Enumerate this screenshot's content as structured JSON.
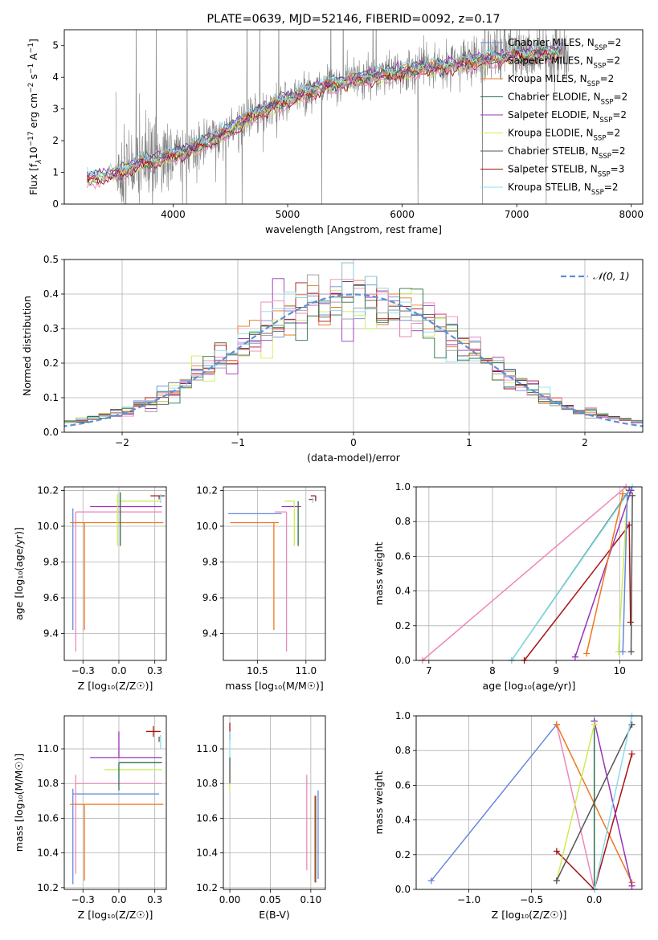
{
  "figure_title": "PLATE=0639, MJD=52146, FIBERID=0092, z=0.17",
  "chart_data": [
    {
      "id": "spectrum",
      "type": "line",
      "title": "PLATE=0639, MJD=52146, FIBERID=0092, z=0.17",
      "xlabel": "wavelength [Angstrom, rest frame]",
      "ylabel_parts": [
        "Flux [f",
        "λ",
        "10",
        "−17",
        " erg cm",
        "−2",
        " s",
        "−1",
        " A",
        "−1",
        "]"
      ],
      "xlim": [
        3050,
        8100
      ],
      "ylim": [
        0,
        5.5
      ],
      "xticks": [
        4000,
        5000,
        6000,
        7000,
        8000
      ],
      "yticks": [
        0,
        1,
        2,
        3,
        4,
        5
      ],
      "grid": false,
      "legend_position": "upper right",
      "data_color": "#808080",
      "data_noise_seed": 7,
      "data_x_range": [
        3500,
        7450
      ],
      "model_x_range": [
        3250,
        7400
      ],
      "continuum": [
        [
          3250,
          0.8
        ],
        [
          3400,
          0.9
        ],
        [
          3550,
          1.0
        ],
        [
          3700,
          1.3
        ],
        [
          3850,
          1.4
        ],
        [
          4000,
          1.55
        ],
        [
          4200,
          1.8
        ],
        [
          4400,
          2.15
        ],
        [
          4600,
          2.6
        ],
        [
          4800,
          3.0
        ],
        [
          5000,
          3.3
        ],
        [
          5200,
          3.55
        ],
        [
          5400,
          3.8
        ],
        [
          5600,
          3.95
        ],
        [
          5800,
          4.05
        ],
        [
          6000,
          4.2
        ],
        [
          6200,
          4.3
        ],
        [
          6400,
          4.35
        ],
        [
          6600,
          4.5
        ],
        [
          6800,
          4.6
        ],
        [
          7000,
          4.7
        ],
        [
          7200,
          4.75
        ],
        [
          7400,
          4.8
        ]
      ],
      "legend": [
        {
          "label": "Chabrier MILES, N",
          "sub": "SSP",
          "suffix": "=2",
          "color": "#6688dd"
        },
        {
          "label": "Salpeter MILES, N",
          "sub": "SSP",
          "suffix": "=2",
          "color": "#999999"
        },
        {
          "label": "Kroupa MILES, N",
          "sub": "SSP",
          "suffix": "=2",
          "color": "#ee7722"
        },
        {
          "label": "Chabrier ELODIE, N",
          "sub": "SSP",
          "suffix": "=2",
          "color": "#2e6e4e"
        },
        {
          "label": "Salpeter ELODIE, N",
          "sub": "SSP",
          "suffix": "=2",
          "color": "#9933bb"
        },
        {
          "label": "Kroupa ELODIE, N",
          "sub": "SSP",
          "suffix": "=2",
          "color": "#ccee55"
        },
        {
          "label": "Chabrier STELIB, N",
          "sub": "SSP",
          "suffix": "=2",
          "color": "#555555"
        },
        {
          "label": "Salpeter STELIB, N",
          "sub": "SSP",
          "suffix": "=3",
          "color": "#aa1111"
        },
        {
          "label": "Kroupa STELIB, N",
          "sub": "SSP",
          "suffix": "=2",
          "color": "#88ddee"
        }
      ],
      "model_colors": [
        "#6688dd",
        "#999999",
        "#ee7722",
        "#2e6e4e",
        "#9933bb",
        "#ccee55",
        "#555555",
        "#aa1111",
        "#88ddee",
        "#ee88bb"
      ]
    },
    {
      "id": "residuals",
      "type": "line",
      "xlabel": "(data-model)/error",
      "ylabel": "Normed distribution",
      "xlim": [
        -2.5,
        2.5
      ],
      "ylim": [
        0,
        0.5
      ],
      "xticks": [
        -2,
        -1,
        0,
        1,
        2
      ],
      "yticks": [
        0.0,
        0.1,
        0.2,
        0.3,
        0.4,
        0.5
      ],
      "grid": true,
      "legend_position": "upper right",
      "gaussian": {
        "label": "𝒩(0, 1)",
        "color": "#5b8fd6",
        "mu": 0,
        "sigma": 1
      },
      "bin_width": 0.1,
      "histogram_colors": [
        "#6688dd",
        "#ee7722",
        "#9933bb",
        "#ccee55",
        "#555555",
        "#aa1111",
        "#88ddee",
        "#ee88bb",
        "#2e6e4e",
        "#999999"
      ]
    },
    {
      "id": "age_vs_Z",
      "type": "scatter",
      "xlabel": "Z [log₁₀(Z/Z☉)]",
      "ylabel": "age  [log₁₀(age/yr)]",
      "xlim": [
        -0.38,
        0.33
      ],
      "ylim": [
        9.25,
        10.22
      ],
      "xticks": [
        -0.25,
        0.0,
        0.25
      ],
      "yticks": [
        9.4,
        9.6,
        9.8,
        10.0,
        10.2
      ],
      "grid": true,
      "points": [
        {
          "x": -0.32,
          "y": 10.1,
          "xerr": [
            0.0,
            0.0
          ],
          "yerr": [
            0.68,
            0.0
          ],
          "color": "#6688dd"
        },
        {
          "x": -0.3,
          "y": 10.08,
          "xerr": [
            0.0,
            0.6
          ],
          "yerr": [
            0.78,
            0.0
          ],
          "color": "#ee88bb"
        },
        {
          "x": -0.24,
          "y": 10.02,
          "xerr": [
            0.1,
            0.55
          ],
          "yerr": [
            0.6,
            0.0
          ],
          "color": "#ee7722"
        },
        {
          "x": 0.0,
          "y": 10.11,
          "xerr": [
            0.2,
            0.3
          ],
          "yerr": [
            0.0,
            0.0
          ],
          "color": "#9933bb"
        },
        {
          "x": -0.01,
          "y": 10.14,
          "xerr": [
            0.0,
            0.3
          ],
          "yerr": [
            0.25,
            0.04
          ],
          "color": "#ccee55"
        },
        {
          "x": 0.01,
          "y": 10.14,
          "xerr": [
            0.0,
            0.0
          ],
          "yerr": [
            0.25,
            0.05
          ],
          "color": "#2e6e4e"
        },
        {
          "x": 0.28,
          "y": 10.15,
          "xerr": [
            0.0,
            0.0
          ],
          "yerr": [
            0.0,
            0.02
          ],
          "color": "#555555"
        },
        {
          "x": 0.27,
          "y": 10.17,
          "xerr": [
            0.05,
            0.05
          ],
          "yerr": [
            0.0,
            0.0
          ],
          "color": "#aa1111"
        },
        {
          "x": 0.29,
          "y": 10.16,
          "xerr": [
            0.0,
            0.0
          ],
          "yerr": [
            0.03,
            0.02
          ],
          "color": "#88ddee"
        }
      ]
    },
    {
      "id": "age_vs_mass",
      "type": "scatter",
      "xlabel": "mass [log₁₀(M/M☉)]",
      "ylabel": "",
      "xlim": [
        10.15,
        11.2
      ],
      "ylim": [
        9.25,
        10.22
      ],
      "xticks": [
        10.5,
        11.0
      ],
      "yticks": [
        9.4,
        9.6,
        9.8,
        10.0,
        10.2
      ],
      "grid": true,
      "points": [
        {
          "x": 10.75,
          "y": 10.07,
          "xerr": [
            0.55,
            0.0
          ],
          "yerr": [
            0.0,
            0.0
          ],
          "color": "#6688dd"
        },
        {
          "x": 10.8,
          "y": 10.08,
          "xerr": [
            0.12,
            0.0
          ],
          "yerr": [
            0.78,
            0.0
          ],
          "color": "#ee88bb"
        },
        {
          "x": 10.67,
          "y": 10.02,
          "xerr": [
            0.45,
            0.05
          ],
          "yerr": [
            0.6,
            0.0
          ],
          "color": "#ee7722"
        },
        {
          "x": 10.95,
          "y": 10.11,
          "xerr": [
            0.2,
            0.0
          ],
          "yerr": [
            0.0,
            0.0
          ],
          "color": "#9933bb"
        },
        {
          "x": 10.88,
          "y": 10.14,
          "xerr": [
            0.1,
            0.0
          ],
          "yerr": [
            0.25,
            0.0
          ],
          "color": "#ccee55"
        },
        {
          "x": 10.92,
          "y": 10.14,
          "xerr": [
            0.0,
            0.0
          ],
          "yerr": [
            0.25,
            0.0
          ],
          "color": "#2e6e4e"
        },
        {
          "x": 11.08,
          "y": 10.15,
          "xerr": [
            0.05,
            0.0
          ],
          "yerr": [
            0.0,
            0.0
          ],
          "color": "#555555"
        },
        {
          "x": 11.1,
          "y": 10.17,
          "xerr": [
            0.05,
            0.0
          ],
          "yerr": [
            0.03,
            0.0
          ],
          "color": "#aa1111"
        },
        {
          "x": 11.07,
          "y": 10.16,
          "xerr": [
            0.0,
            0.0
          ],
          "yerr": [
            0.03,
            0.0
          ],
          "color": "#88ddee"
        }
      ]
    },
    {
      "id": "mass_weight_vs_age",
      "type": "line",
      "xlabel": "age  [log₁₀(age/yr)]",
      "ylabel": "mass weight",
      "xlim": [
        6.8,
        10.35
      ],
      "ylim": [
        0,
        1
      ],
      "xticks": [
        7,
        8,
        9,
        10
      ],
      "yticks": [
        0.0,
        0.2,
        0.4,
        0.6,
        0.8,
        1.0
      ],
      "grid": true,
      "series": [
        {
          "color": "#ee88bb",
          "points": [
            [
              6.9,
              0.0
            ],
            [
              10.1,
              1.0
            ]
          ]
        },
        {
          "color": "#2e6e4e",
          "points": [
            [
              8.3,
              0.0
            ],
            [
              10.15,
              0.98
            ]
          ]
        },
        {
          "color": "#88ddee",
          "points": [
            [
              8.3,
              0.0
            ],
            [
              10.2,
              1.0
            ]
          ]
        },
        {
          "color": "#aa1111",
          "points": [
            [
              8.5,
              0.0
            ],
            [
              10.15,
              0.78
            ],
            [
              10.17,
              0.22
            ]
          ]
        },
        {
          "color": "#9933bb",
          "points": [
            [
              9.3,
              0.02
            ],
            [
              10.18,
              0.98
            ]
          ]
        },
        {
          "color": "#ee7722",
          "points": [
            [
              9.48,
              0.04
            ],
            [
              10.05,
              0.96
            ]
          ]
        },
        {
          "color": "#ccee55",
          "points": [
            [
              9.98,
              0.05
            ],
            [
              10.12,
              0.95
            ]
          ]
        },
        {
          "color": "#6688dd",
          "points": [
            [
              10.05,
              0.05
            ],
            [
              10.12,
              0.95
            ]
          ]
        },
        {
          "color": "#555555",
          "points": [
            [
              10.18,
              0.05
            ],
            [
              10.2,
              0.95
            ]
          ]
        }
      ]
    },
    {
      "id": "mass_vs_Z",
      "type": "scatter",
      "xlabel": "Z [log₁₀(Z/Z☉)]",
      "ylabel": "mass [log₁₀(M/M☉)]",
      "xlim": [
        -0.38,
        0.33
      ],
      "ylim": [
        10.19,
        11.19
      ],
      "xticks": [
        -0.25,
        0.0,
        0.25
      ],
      "yticks": [
        10.2,
        10.4,
        10.6,
        10.8,
        11.0
      ],
      "grid": true,
      "points": [
        {
          "x": -0.32,
          "y": 10.74,
          "xerr": [
            0.0,
            0.6
          ],
          "yerr": [
            0.52,
            0.03
          ],
          "color": "#6688dd"
        },
        {
          "x": -0.3,
          "y": 10.8,
          "xerr": [
            0.0,
            0.6
          ],
          "yerr": [
            0.52,
            0.05
          ],
          "color": "#ee88bb"
        },
        {
          "x": -0.24,
          "y": 10.68,
          "xerr": [
            0.1,
            0.55
          ],
          "yerr": [
            0.44,
            0.0
          ],
          "color": "#ee7722"
        },
        {
          "x": 0.0,
          "y": 10.95,
          "xerr": [
            0.2,
            0.3
          ],
          "yerr": [
            0.0,
            0.15
          ],
          "color": "#9933bb"
        },
        {
          "x": 0.0,
          "y": 10.88,
          "xerr": [
            0.1,
            0.3
          ],
          "yerr": [
            0.0,
            0.0
          ],
          "color": "#ccee55"
        },
        {
          "x": 0.0,
          "y": 10.92,
          "xerr": [
            0.0,
            0.3
          ],
          "yerr": [
            0.16,
            0.0
          ],
          "color": "#2e6e4e"
        },
        {
          "x": 0.28,
          "y": 11.07,
          "xerr": [
            0.0,
            0.0
          ],
          "yerr": [
            0.03,
            0.0
          ],
          "color": "#555555"
        },
        {
          "x": 0.24,
          "y": 11.1,
          "xerr": [
            0.05,
            0.05
          ],
          "yerr": [
            0.03,
            0.03
          ],
          "color": "#aa1111"
        },
        {
          "x": 0.29,
          "y": 11.05,
          "xerr": [
            0.0,
            0.0
          ],
          "yerr": [
            0.05,
            0.03
          ],
          "color": "#88ddee"
        }
      ]
    },
    {
      "id": "mass_vs_ebv",
      "type": "scatter",
      "xlabel": "E(B-V)",
      "ylabel": "",
      "xlim": [
        -0.008,
        0.118
      ],
      "ylim": [
        10.19,
        11.19
      ],
      "xticks": [
        0.0,
        0.05,
        0.1
      ],
      "yticks": [
        10.2,
        10.4,
        10.6,
        10.8,
        11.0
      ],
      "grid": true,
      "points": [
        {
          "x": 0.0,
          "y": 11.1,
          "xerr": [
            0.0,
            0.0
          ],
          "yerr": [
            0.05,
            0.05
          ],
          "color": "#aa1111"
        },
        {
          "x": 0.0,
          "y": 11.0,
          "xerr": [
            0.0,
            0.0
          ],
          "yerr": [
            0.1,
            0.1
          ],
          "color": "#88ddee"
        },
        {
          "x": 0.0,
          "y": 10.88,
          "xerr": [
            0.0,
            0.0
          ],
          "yerr": [
            0.12,
            0.0
          ],
          "color": "#ccee55"
        },
        {
          "x": 0.0,
          "y": 10.95,
          "xerr": [
            0.0,
            0.0
          ],
          "yerr": [
            0.15,
            0.0
          ],
          "color": "#555555"
        },
        {
          "x": 0.095,
          "y": 10.6,
          "xerr": [
            0.0,
            0.0
          ],
          "yerr": [
            0.3,
            0.25
          ],
          "color": "#ee88bb"
        },
        {
          "x": 0.105,
          "y": 10.5,
          "xerr": [
            0.0,
            0.0
          ],
          "yerr": [
            0.27,
            0.23
          ],
          "color": "#ee7722"
        },
        {
          "x": 0.109,
          "y": 10.5,
          "xerr": [
            0.0,
            0.0
          ],
          "yerr": [
            0.25,
            0.26
          ],
          "color": "#6688dd"
        },
        {
          "x": 0.106,
          "y": 10.48,
          "xerr": [
            0.0,
            0.0
          ],
          "yerr": [
            0.25,
            0.25
          ],
          "color": "#555555"
        }
      ]
    },
    {
      "id": "mass_weight_vs_Z",
      "type": "line",
      "xlabel": "Z [log₁₀(Z/Z☉)]",
      "ylabel": "mass weight",
      "xlim": [
        -1.42,
        0.38
      ],
      "ylim": [
        0,
        1
      ],
      "xticks": [
        -1.0,
        -0.5,
        0.0
      ],
      "yticks": [
        0.0,
        0.2,
        0.4,
        0.6,
        0.8,
        1.0
      ],
      "grid": true,
      "series": [
        {
          "color": "#6688dd",
          "points": [
            [
              -1.3,
              0.05
            ],
            [
              -0.3,
              0.95
            ]
          ]
        },
        {
          "color": "#ee88bb",
          "points": [
            [
              -0.3,
              0.95
            ],
            [
              0.0,
              0.0
            ]
          ]
        },
        {
          "color": "#ee7722",
          "points": [
            [
              -0.3,
              0.95
            ],
            [
              0.3,
              0.04
            ]
          ]
        },
        {
          "color": "#aa1111",
          "points": [
            [
              -0.3,
              0.22
            ],
            [
              0.0,
              0.0
            ],
            [
              0.3,
              0.78
            ]
          ]
        },
        {
          "color": "#2e6e4e",
          "points": [
            [
              0.0,
              0.0
            ],
            [
              0.0,
              0.97
            ]
          ]
        },
        {
          "color": "#9933bb",
          "points": [
            [
              0.0,
              0.97
            ],
            [
              0.3,
              0.02
            ]
          ]
        },
        {
          "color": "#ccee55",
          "points": [
            [
              -0.3,
              0.05
            ],
            [
              0.0,
              0.95
            ]
          ]
        },
        {
          "color": "#555555",
          "points": [
            [
              -0.3,
              0.05
            ],
            [
              0.3,
              0.95
            ]
          ]
        },
        {
          "color": "#88ddee",
          "points": [
            [
              0.0,
              0.0
            ],
            [
              0.3,
              1.0
            ]
          ]
        }
      ]
    }
  ]
}
